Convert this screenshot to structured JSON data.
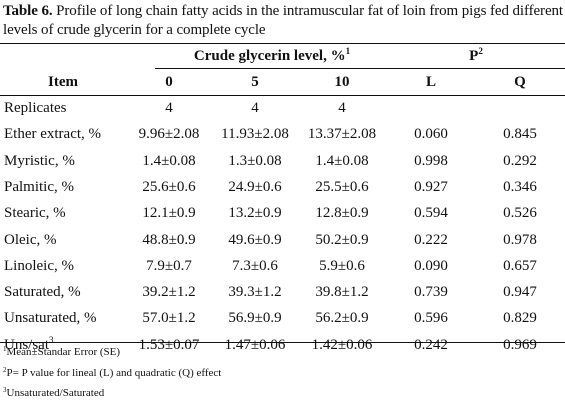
{
  "caption": {
    "label": "Table 6.",
    "text": "Profile of long chain fatty acids in the intramuscular fat of loin from pigs fed different levels of crude glycerin for a complete cycle"
  },
  "header": {
    "group1": "Crude glycerin level, %",
    "group1_sup": "1",
    "group2": "P",
    "group2_sup": "2",
    "item": "Item",
    "columns": [
      "0",
      "5",
      "10",
      "L",
      "Q"
    ]
  },
  "rows": [
    {
      "item": "Replicates",
      "item_sup": "",
      "c0": "4",
      "c5": "4",
      "c10": "4",
      "L": "",
      "Q": ""
    },
    {
      "item": "Ether extract, %",
      "item_sup": "",
      "c0": "9.96±2.08",
      "c5": "11.93±2.08",
      "c10": "13.37±2.08",
      "L": "0.060",
      "Q": "0.845"
    },
    {
      "item": "Myristic, %",
      "item_sup": "",
      "c0": "1.4±0.08",
      "c5": "1.3±0.08",
      "c10": "1.4±0.08",
      "L": "0.998",
      "Q": "0.292"
    },
    {
      "item": "Palmitic, %",
      "item_sup": "",
      "c0": "25.6±0.6",
      "c5": "24.9±0.6",
      "c10": "25.5±0.6",
      "L": "0.927",
      "Q": "0.346"
    },
    {
      "item": "Stearic, %",
      "item_sup": "",
      "c0": "12.1±0.9",
      "c5": "13.2±0.9",
      "c10": "12.8±0.9",
      "L": "0.594",
      "Q": "0.526"
    },
    {
      "item": "Oleic, %",
      "item_sup": "",
      "c0": "48.8±0.9",
      "c5": "49.6±0.9",
      "c10": "50.2±0.9",
      "L": "0.222",
      "Q": "0.978"
    },
    {
      "item": "Linoleic, %",
      "item_sup": "",
      "c0": "7.9±0.7",
      "c5": "7.3±0.6",
      "c10": "5.9±0.6",
      "L": "0.090",
      "Q": "0.657"
    },
    {
      "item": "Saturated, %",
      "item_sup": "",
      "c0": "39.2±1.2",
      "c5": "39.3±1.2",
      "c10": "39.8±1.2",
      "L": "0.739",
      "Q": "0.947"
    },
    {
      "item": "Unsaturated, %",
      "item_sup": "",
      "c0": "57.0±1.2",
      "c5": "56.9±0.9",
      "c10": "56.2±0.9",
      "L": "0.596",
      "Q": "0.829"
    },
    {
      "item": "Uns/sat",
      "item_sup": "3",
      "c0": "1.53±0.07",
      "c5": "1.47±0.06",
      "c10": "1.42±0.06",
      "L": "0.242",
      "Q": "0.969"
    }
  ],
  "footnotes": [
    {
      "mark": "1",
      "text": "Mean±Standar Error (SE)"
    },
    {
      "mark": "2",
      "text": "P= P value for lineal (L) and quadratic (Q)  effect"
    },
    {
      "mark": "3",
      "text": "Unsaturated/Saturated"
    }
  ]
}
